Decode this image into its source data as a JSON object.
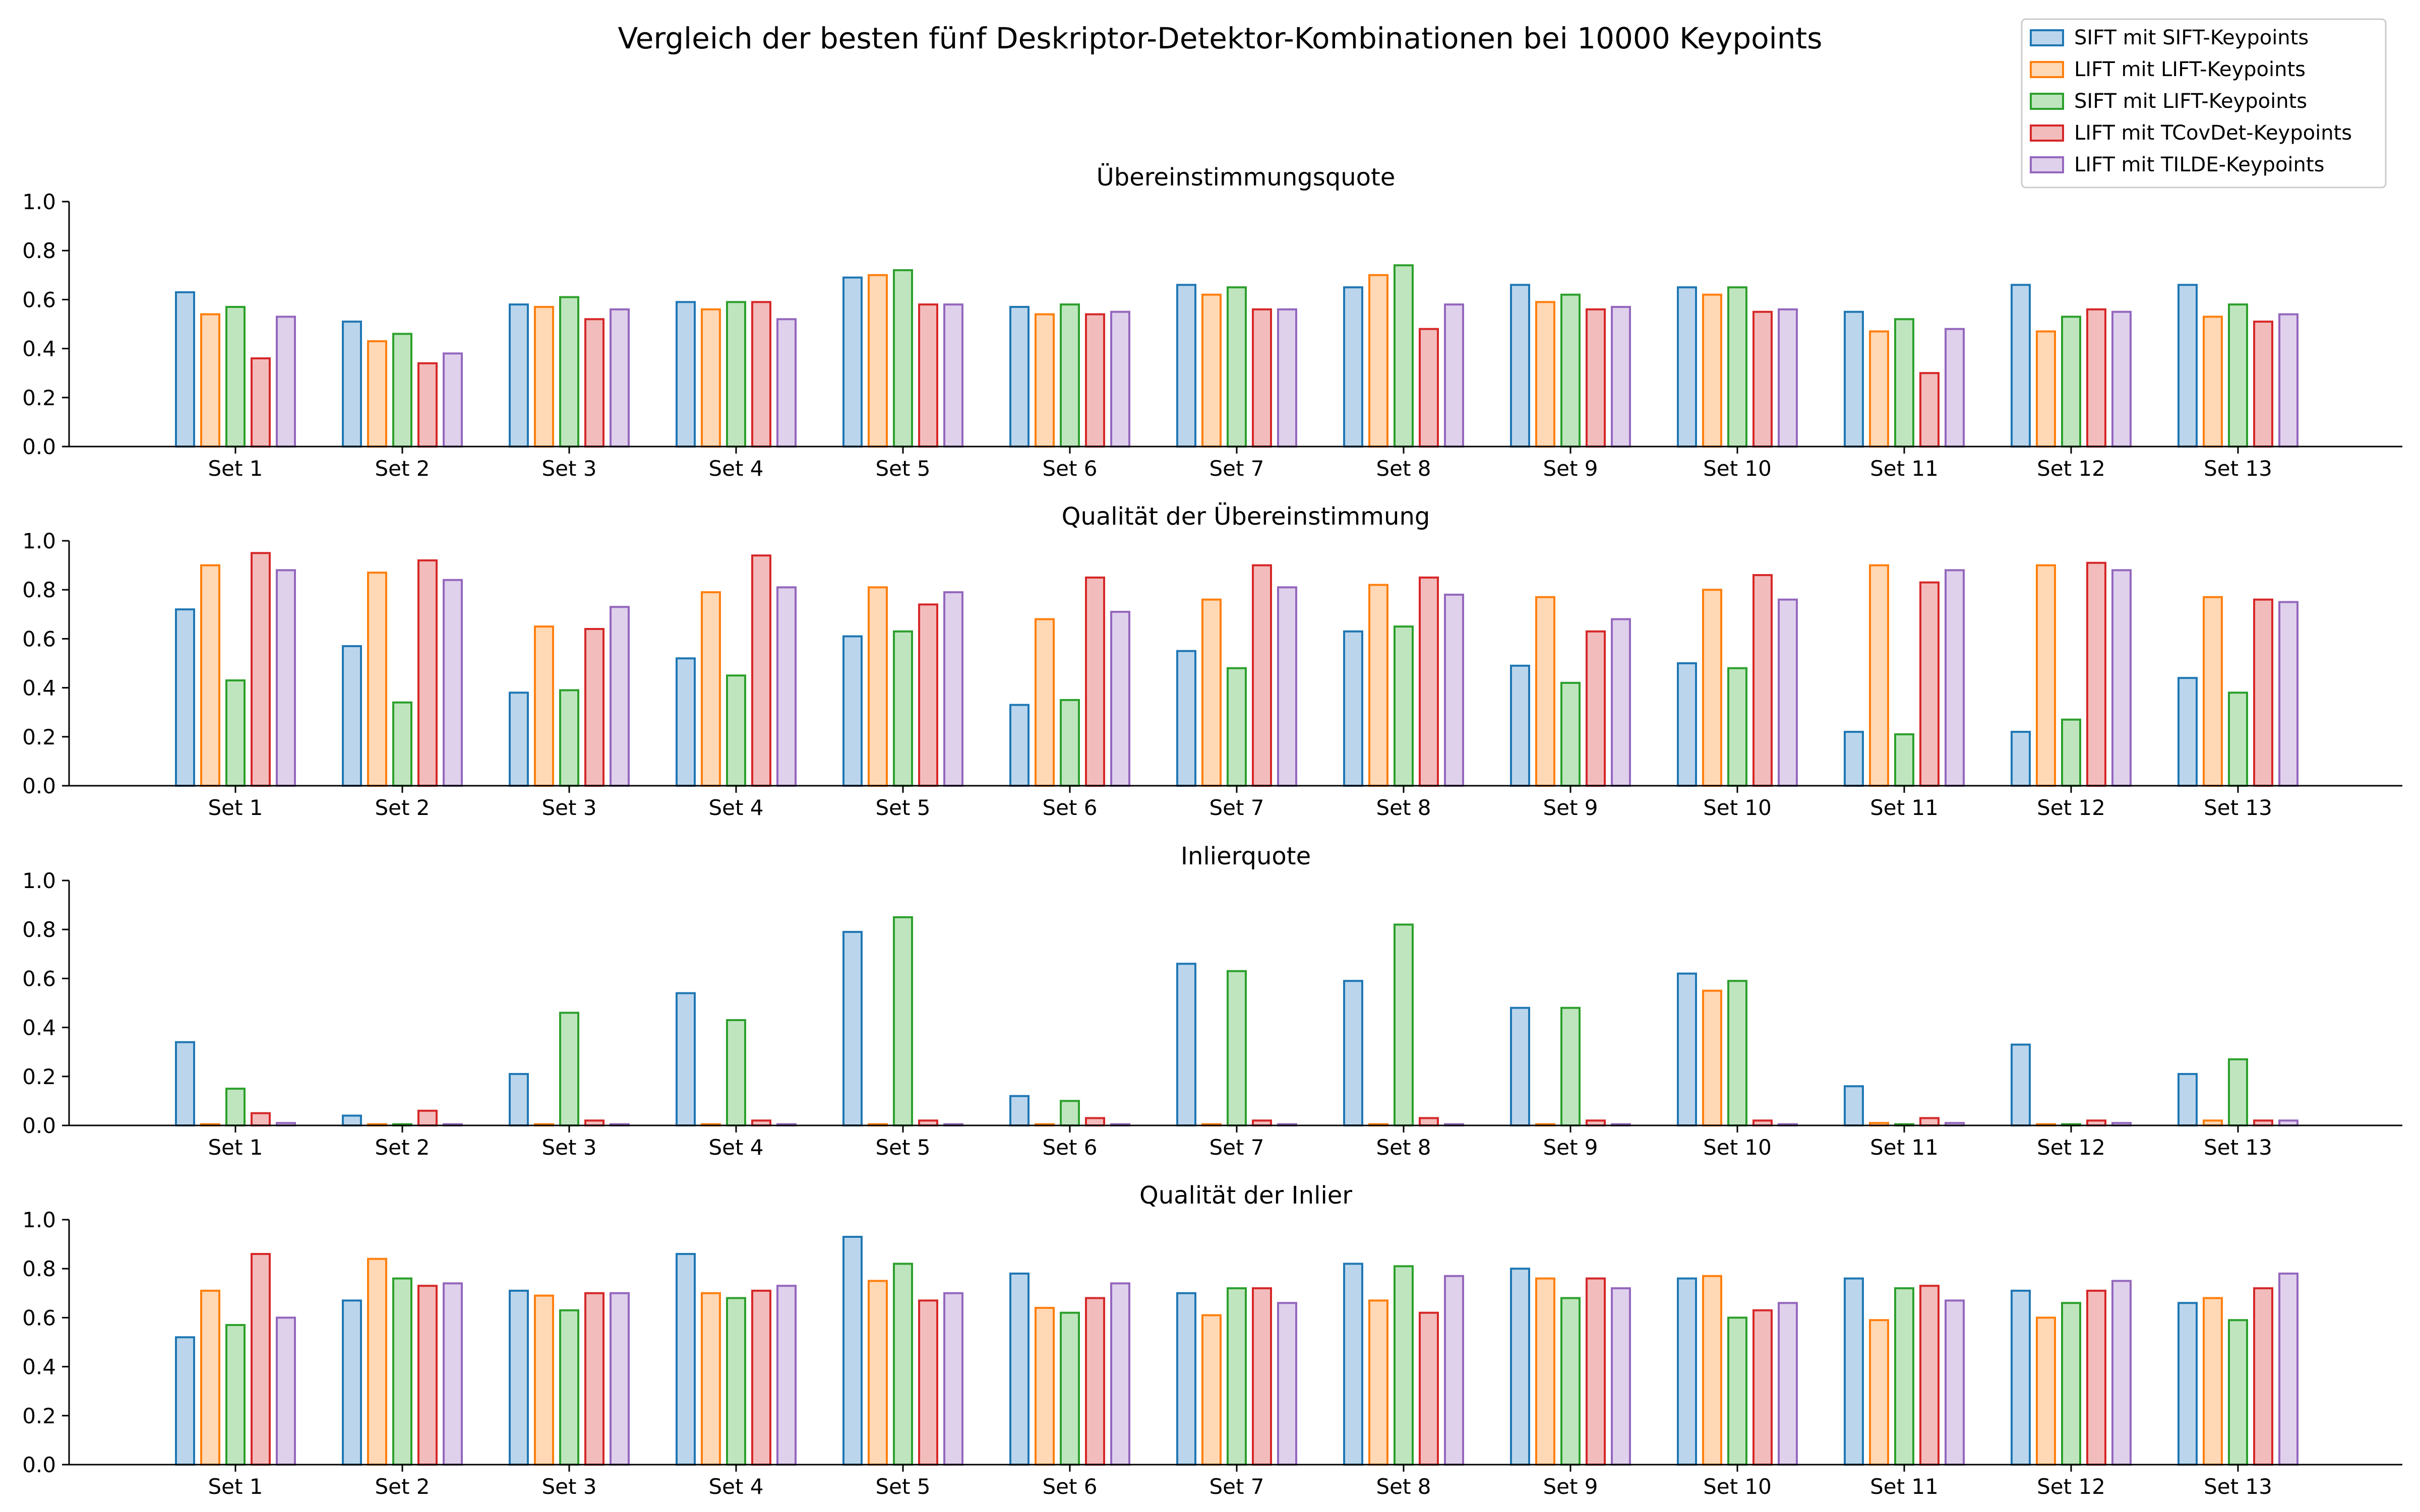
{
  "figure": {
    "title": "Vergleich der besten fünf Deskriptor-Detektor-Kombinationen bei 10000 Keypoints"
  },
  "colors": {
    "series_edges": [
      "#1f77b4",
      "#ff7f0e",
      "#2ca02c",
      "#d62728",
      "#9467bd"
    ],
    "series_fills": [
      "#bbd6ec",
      "#ffd8b5",
      "#bfe5bf",
      "#f2bcbc",
      "#dfd0ec"
    ],
    "axis": "#000000",
    "text": "#000000"
  },
  "legend": {
    "placement": "top-right",
    "entries": [
      "SIFT mit SIFT-Keypoints",
      "LIFT mit LIFT-Keypoints",
      "SIFT mit LIFT-Keypoints",
      "LIFT mit TCovDet-Keypoints",
      "LIFT mit TILDE-Keypoints"
    ]
  },
  "chart_data": [
    {
      "type": "bar",
      "title": "Übereinstimmungsquote",
      "ylim": [
        0,
        1.0
      ],
      "yticks": [
        "0.0",
        "0.2",
        "0.4",
        "0.6",
        "0.8",
        "1.0"
      ],
      "grid": false,
      "categories": [
        "Set 1",
        "Set 2",
        "Set 3",
        "Set 4",
        "Set 5",
        "Set 6",
        "Set 7",
        "Set 8",
        "Set 9",
        "Set 10",
        "Set 11",
        "Set 12",
        "Set 13"
      ],
      "series": [
        {
          "name": "SIFT mit SIFT-Keypoints",
          "values": [
            0.63,
            0.51,
            0.58,
            0.59,
            0.69,
            0.57,
            0.66,
            0.65,
            0.66,
            0.65,
            0.55,
            0.66,
            0.66
          ]
        },
        {
          "name": "LIFT mit LIFT-Keypoints",
          "values": [
            0.54,
            0.43,
            0.57,
            0.56,
            0.7,
            0.54,
            0.62,
            0.7,
            0.59,
            0.62,
            0.47,
            0.47,
            0.53
          ]
        },
        {
          "name": "SIFT mit LIFT-Keypoints",
          "values": [
            0.57,
            0.46,
            0.61,
            0.59,
            0.72,
            0.58,
            0.65,
            0.74,
            0.62,
            0.65,
            0.52,
            0.53,
            0.58
          ]
        },
        {
          "name": "LIFT mit TCovDet-Keypoints",
          "values": [
            0.36,
            0.34,
            0.52,
            0.59,
            0.58,
            0.54,
            0.56,
            0.48,
            0.56,
            0.55,
            0.3,
            0.56,
            0.51
          ]
        },
        {
          "name": "LIFT mit TILDE-Keypoints",
          "values": [
            0.53,
            0.38,
            0.56,
            0.52,
            0.58,
            0.55,
            0.56,
            0.58,
            0.57,
            0.56,
            0.48,
            0.55,
            0.54
          ]
        }
      ]
    },
    {
      "type": "bar",
      "title": "Qualität der Übereinstimmung",
      "ylim": [
        0,
        1.0
      ],
      "yticks": [
        "0.0",
        "0.2",
        "0.4",
        "0.6",
        "0.8",
        "1.0"
      ],
      "grid": false,
      "categories": [
        "Set 1",
        "Set 2",
        "Set 3",
        "Set 4",
        "Set 5",
        "Set 6",
        "Set 7",
        "Set 8",
        "Set 9",
        "Set 10",
        "Set 11",
        "Set 12",
        "Set 13"
      ],
      "series": [
        {
          "name": "SIFT mit SIFT-Keypoints",
          "values": [
            0.72,
            0.57,
            0.38,
            0.52,
            0.61,
            0.33,
            0.55,
            0.63,
            0.49,
            0.5,
            0.22,
            0.22,
            0.44
          ]
        },
        {
          "name": "LIFT mit LIFT-Keypoints",
          "values": [
            0.9,
            0.87,
            0.65,
            0.79,
            0.81,
            0.68,
            0.76,
            0.82,
            0.77,
            0.8,
            0.9,
            0.9,
            0.77
          ]
        },
        {
          "name": "SIFT mit LIFT-Keypoints",
          "values": [
            0.43,
            0.34,
            0.39,
            0.45,
            0.63,
            0.35,
            0.48,
            0.65,
            0.42,
            0.48,
            0.21,
            0.27,
            0.38
          ]
        },
        {
          "name": "LIFT mit TCovDet-Keypoints",
          "values": [
            0.95,
            0.92,
            0.64,
            0.94,
            0.74,
            0.85,
            0.9,
            0.85,
            0.63,
            0.86,
            0.83,
            0.91,
            0.76
          ]
        },
        {
          "name": "LIFT mit TILDE-Keypoints",
          "values": [
            0.88,
            0.84,
            0.73,
            0.81,
            0.79,
            0.71,
            0.81,
            0.78,
            0.68,
            0.76,
            0.88,
            0.88,
            0.75
          ]
        }
      ]
    },
    {
      "type": "bar",
      "title": "Inlierquote",
      "ylim": [
        0,
        1.0
      ],
      "yticks": [
        "0.0",
        "0.2",
        "0.4",
        "0.6",
        "0.8",
        "1.0"
      ],
      "grid": false,
      "categories": [
        "Set 1",
        "Set 2",
        "Set 3",
        "Set 4",
        "Set 5",
        "Set 6",
        "Set 7",
        "Set 8",
        "Set 9",
        "Set 10",
        "Set 11",
        "Set 12",
        "Set 13"
      ],
      "series": [
        {
          "name": "SIFT mit SIFT-Keypoints",
          "values": [
            0.34,
            0.04,
            0.21,
            0.54,
            0.79,
            0.12,
            0.66,
            0.59,
            0.48,
            0.62,
            0.16,
            0.33,
            0.21
          ]
        },
        {
          "name": "LIFT mit LIFT-Keypoints",
          "values": [
            0.005,
            0.005,
            0.005,
            0.005,
            0.005,
            0.005,
            0.005,
            0.005,
            0.005,
            0.55,
            0.01,
            0.005,
            0.02
          ]
        },
        {
          "name": "SIFT mit LIFT-Keypoints",
          "values": [
            0.15,
            0.005,
            0.46,
            0.43,
            0.85,
            0.1,
            0.63,
            0.82,
            0.48,
            0.59,
            0.005,
            0.005,
            0.27
          ]
        },
        {
          "name": "LIFT mit TCovDet-Keypoints",
          "values": [
            0.05,
            0.06,
            0.02,
            0.02,
            0.02,
            0.03,
            0.02,
            0.03,
            0.02,
            0.02,
            0.03,
            0.02,
            0.02
          ]
        },
        {
          "name": "LIFT mit TILDE-Keypoints",
          "values": [
            0.01,
            0.005,
            0.005,
            0.005,
            0.005,
            0.005,
            0.005,
            0.005,
            0.005,
            0.005,
            0.01,
            0.01,
            0.02
          ]
        }
      ]
    },
    {
      "type": "bar",
      "title": "Qualität der Inlier",
      "ylim": [
        0,
        1.0
      ],
      "yticks": [
        "0.0",
        "0.2",
        "0.4",
        "0.6",
        "0.8",
        "1.0"
      ],
      "grid": false,
      "categories": [
        "Set 1",
        "Set 2",
        "Set 3",
        "Set 4",
        "Set 5",
        "Set 6",
        "Set 7",
        "Set 8",
        "Set 9",
        "Set 10",
        "Set 11",
        "Set 12",
        "Set 13"
      ],
      "series": [
        {
          "name": "SIFT mit SIFT-Keypoints",
          "values": [
            0.52,
            0.67,
            0.71,
            0.86,
            0.93,
            0.78,
            0.7,
            0.82,
            0.8,
            0.76,
            0.76,
            0.71,
            0.66
          ]
        },
        {
          "name": "LIFT mit LIFT-Keypoints",
          "values": [
            0.71,
            0.84,
            0.69,
            0.7,
            0.75,
            0.64,
            0.61,
            0.67,
            0.76,
            0.77,
            0.59,
            0.6,
            0.68
          ]
        },
        {
          "name": "SIFT mit LIFT-Keypoints",
          "values": [
            0.57,
            0.76,
            0.63,
            0.68,
            0.82,
            0.62,
            0.72,
            0.81,
            0.68,
            0.6,
            0.72,
            0.66,
            0.59
          ]
        },
        {
          "name": "LIFT mit TCovDet-Keypoints",
          "values": [
            0.86,
            0.73,
            0.7,
            0.71,
            0.67,
            0.68,
            0.72,
            0.62,
            0.76,
            0.63,
            0.73,
            0.71,
            0.72
          ]
        },
        {
          "name": "LIFT mit TILDE-Keypoints",
          "values": [
            0.6,
            0.74,
            0.7,
            0.73,
            0.7,
            0.74,
            0.66,
            0.77,
            0.72,
            0.66,
            0.67,
            0.75,
            0.78
          ]
        }
      ]
    }
  ]
}
